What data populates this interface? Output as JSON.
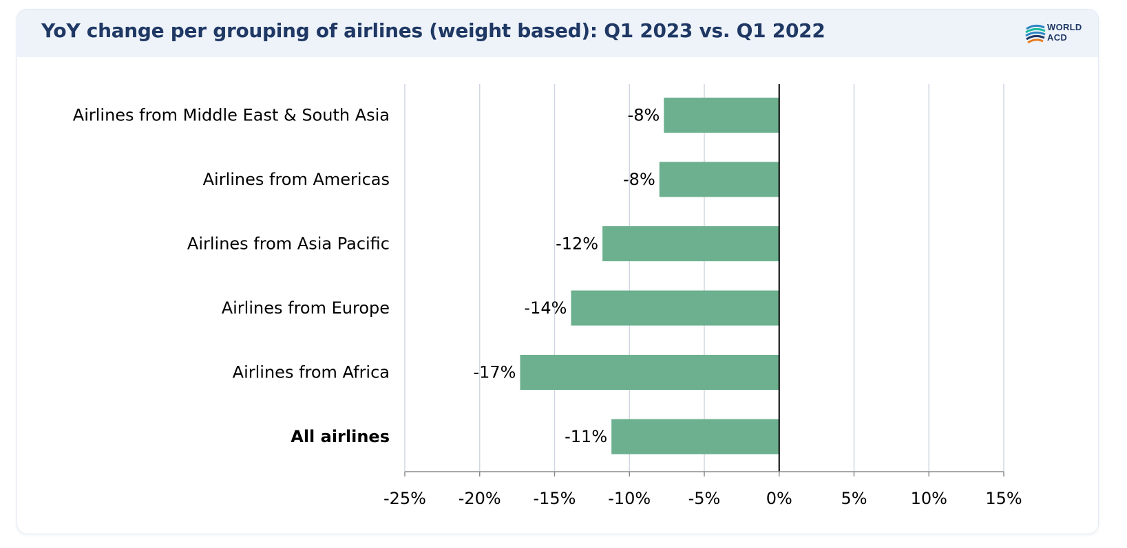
{
  "title": "YoY change per grouping of airlines (weight based): Q1 2023 vs. Q1 2022",
  "logo": {
    "line1": "WORLD",
    "line2": "ACD",
    "icon": "globe-swoosh-icon"
  },
  "colors": {
    "bar": "#6db08f",
    "title": "#1f3864",
    "gridline": "#d0d7e3",
    "axis": "#000000",
    "header_bg": "#eef3fa"
  },
  "chart_data": {
    "type": "bar",
    "orientation": "horizontal",
    "categories": [
      "Airlines from Middle East & South Asia",
      "Airlines from Americas",
      "Airlines from Asia Pacific",
      "Airlines from Europe",
      "Airlines from Africa",
      "All airlines"
    ],
    "bold_categories": [
      "All airlines"
    ],
    "values": [
      -7.7,
      -8.0,
      -11.8,
      -13.9,
      -17.3,
      -11.2
    ],
    "data_labels": [
      "-8%",
      "-8%",
      "-12%",
      "-14%",
      "-17%",
      "-11%"
    ],
    "xlim": [
      -25,
      15
    ],
    "xticks": [
      -25,
      -20,
      -15,
      -10,
      -5,
      0,
      5,
      10,
      15
    ],
    "xtick_labels": [
      "-25%",
      "-20%",
      "-15%",
      "-10%",
      "-5%",
      "0%",
      "5%",
      "10%",
      "15%"
    ],
    "grid": true,
    "legend": "none"
  }
}
